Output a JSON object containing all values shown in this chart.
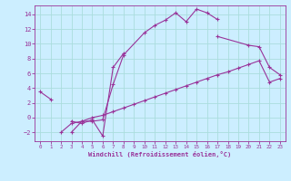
{
  "xlabel": "Windchill (Refroidissement éolien,°C)",
  "background_color": "#cceeff",
  "line_color": "#993399",
  "grid_color": "#aadddd",
  "xlim": [
    -0.5,
    23.5
  ],
  "ylim": [
    -3.2,
    15.2
  ],
  "xticks": [
    0,
    1,
    2,
    3,
    4,
    5,
    6,
    7,
    8,
    9,
    10,
    11,
    12,
    13,
    14,
    15,
    16,
    17,
    18,
    19,
    20,
    21,
    22,
    23
  ],
  "yticks": [
    -2,
    0,
    2,
    4,
    6,
    8,
    10,
    12,
    14
  ],
  "series": [
    {
      "x": [
        0,
        1
      ],
      "y": [
        3.5,
        2.5
      ]
    },
    {
      "x": [
        3,
        4,
        5,
        6,
        7,
        8,
        10,
        11,
        12,
        13,
        14,
        15,
        16,
        17
      ],
      "y": [
        -2.0,
        -0.5,
        -0.5,
        -0.3,
        4.5,
        8.5,
        11.5,
        12.5,
        13.2,
        14.2,
        13.0,
        14.7,
        14.2,
        13.3
      ]
    },
    {
      "x": [
        3,
        4,
        5,
        6,
        7,
        8
      ],
      "y": [
        -0.5,
        -0.8,
        -0.3,
        -2.5,
        6.8,
        8.7
      ]
    },
    {
      "x": [
        2,
        3,
        4,
        5,
        6,
        7,
        8,
        9,
        10,
        11,
        12,
        13,
        14,
        15,
        16,
        17,
        18,
        19,
        20,
        21,
        22,
        23
      ],
      "y": [
        -2.0,
        -0.8,
        -0.5,
        0.0,
        0.3,
        0.8,
        1.3,
        1.8,
        2.3,
        2.8,
        3.3,
        3.8,
        4.3,
        4.8,
        5.3,
        5.8,
        6.2,
        6.7,
        7.2,
        7.7,
        4.8,
        5.3
      ]
    },
    {
      "x": [
        17,
        20,
        21,
        22,
        23
      ],
      "y": [
        11.0,
        9.8,
        9.6,
        6.8,
        5.8
      ]
    }
  ]
}
